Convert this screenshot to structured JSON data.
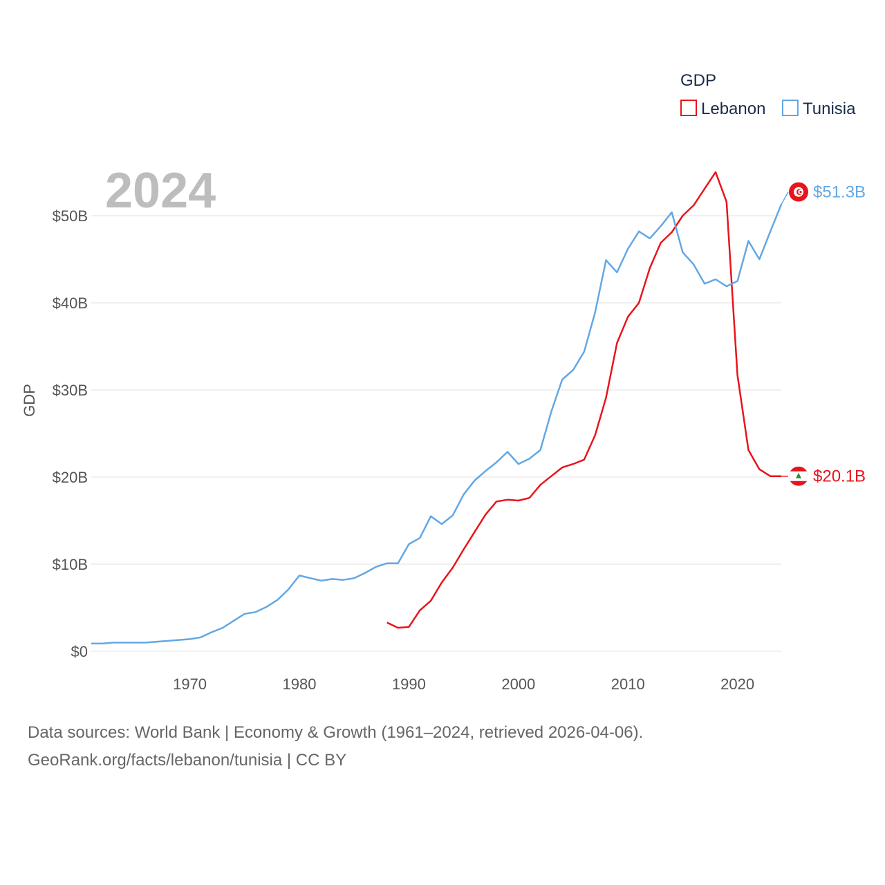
{
  "chart_data": {
    "type": "line",
    "title": "2024",
    "xlabel": "",
    "ylabel": "GDP",
    "xlim": [
      1961,
      2024
    ],
    "ylim": [
      0,
      50
    ],
    "x_ticks": [
      1970,
      1980,
      1990,
      2000,
      2010,
      2020
    ],
    "y_ticks": [
      {
        "value": 0,
        "label": "$0"
      },
      {
        "value": 10,
        "label": "$10B"
      },
      {
        "value": 20,
        "label": "$20B"
      },
      {
        "value": 30,
        "label": "$30B"
      },
      {
        "value": 40,
        "label": "$40B"
      },
      {
        "value": 50,
        "label": "$50B"
      }
    ],
    "legend": {
      "title": "GDP",
      "position": "top-right"
    },
    "series": [
      {
        "name": "Lebanon",
        "color": "#e8141c",
        "end_label": "$20.1B",
        "flag_icon": "lebanon-flag-icon",
        "x": [
          1988,
          1989,
          1990,
          1991,
          1992,
          1993,
          1994,
          1995,
          1996,
          1997,
          1998,
          1999,
          2000,
          2001,
          2002,
          2003,
          2004,
          2005,
          2006,
          2007,
          2008,
          2009,
          2010,
          2011,
          2012,
          2013,
          2014,
          2015,
          2016,
          2017,
          2018,
          2019,
          2020,
          2021,
          2022,
          2023,
          2024
        ],
        "values": [
          3.3,
          2.7,
          2.8,
          4.7,
          5.8,
          7.9,
          9.6,
          11.7,
          13.7,
          15.7,
          17.2,
          17.4,
          17.3,
          17.6,
          19.1,
          20.1,
          21.1,
          21.5,
          22.0,
          24.8,
          29.1,
          35.4,
          38.4,
          40.0,
          44.0,
          46.9,
          48.1,
          50.0,
          51.2,
          53.1,
          55.0,
          51.6,
          31.7,
          23.1,
          20.9,
          20.1,
          20.1
        ]
      },
      {
        "name": "Tunisia",
        "color": "#63a7e4",
        "end_label": "$51.3B",
        "flag_icon": "tunisia-flag-icon",
        "x": [
          1961,
          1962,
          1963,
          1964,
          1965,
          1966,
          1967,
          1968,
          1969,
          1970,
          1971,
          1972,
          1973,
          1974,
          1975,
          1976,
          1977,
          1978,
          1979,
          1980,
          1981,
          1982,
          1983,
          1984,
          1985,
          1986,
          1987,
          1988,
          1989,
          1990,
          1991,
          1992,
          1993,
          1994,
          1995,
          1996,
          1997,
          1998,
          1999,
          2000,
          2001,
          2002,
          2003,
          2004,
          2005,
          2006,
          2007,
          2008,
          2009,
          2010,
          2011,
          2012,
          2013,
          2014,
          2015,
          2016,
          2017,
          2018,
          2019,
          2020,
          2021,
          2022,
          2023,
          2024
        ],
        "values": [
          0.9,
          0.9,
          1.0,
          1.0,
          1.0,
          1.0,
          1.1,
          1.2,
          1.3,
          1.4,
          1.6,
          2.2,
          2.7,
          3.5,
          4.3,
          4.5,
          5.1,
          5.9,
          7.1,
          8.7,
          8.4,
          8.1,
          8.3,
          8.2,
          8.4,
          9.0,
          9.7,
          10.1,
          10.1,
          12.3,
          13.0,
          15.5,
          14.6,
          15.6,
          18.0,
          19.6,
          20.7,
          21.7,
          22.9,
          21.5,
          22.1,
          23.1,
          27.5,
          31.2,
          32.3,
          34.4,
          38.9,
          44.9,
          43.5,
          46.2,
          48.2,
          47.4,
          48.8,
          50.4,
          45.8,
          44.4,
          42.2,
          42.7,
          41.9,
          42.5,
          47.1,
          45.0,
          48.2,
          51.3
        ]
      }
    ]
  },
  "source": {
    "line1": "Data sources: World Bank | Economy & Growth (1961–2024, retrieved 2026-04-06).",
    "line2": "GeoRank.org/facts/lebanon/tunisia | CC BY"
  }
}
